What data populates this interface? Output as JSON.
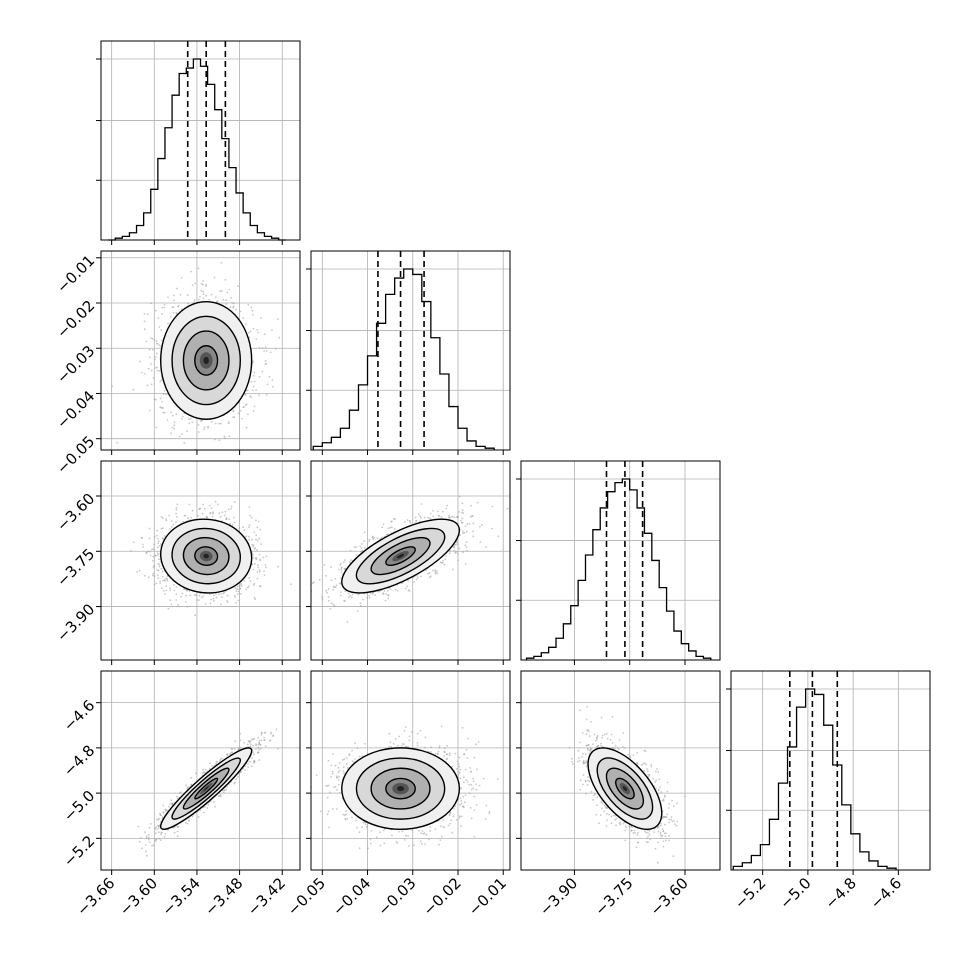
{
  "chart_data": {
    "type": "corner",
    "title": "",
    "params": [
      {
        "range": [
          -3.675,
          -3.395
        ],
        "ticks": [
          -3.66,
          -3.6,
          -3.54,
          -3.48,
          -3.42
        ],
        "tick_labels": [
          "−3.66",
          "−3.60",
          "−3.54",
          "−3.48",
          "−3.42"
        ],
        "quantiles": [
          -3.553,
          -3.527,
          -3.5
        ],
        "median": -3.527,
        "hist_edges": [
          -3.665,
          -3.655,
          -3.645,
          -3.635,
          -3.625,
          -3.615,
          -3.605,
          -3.595,
          -3.585,
          -3.575,
          -3.565,
          -3.555,
          -3.545,
          -3.535,
          -3.525,
          -3.515,
          -3.505,
          -3.495,
          -3.485,
          -3.475,
          -3.465,
          -3.455,
          -3.445,
          -3.435,
          -3.425,
          -3.415
        ],
        "hist": [
          0,
          0.01,
          0.02,
          0.04,
          0.08,
          0.15,
          0.28,
          0.45,
          0.62,
          0.8,
          0.92,
          0.95,
          1.0,
          0.96,
          0.86,
          0.72,
          0.56,
          0.4,
          0.26,
          0.15,
          0.08,
          0.04,
          0.02,
          0.01,
          0
        ]
      },
      {
        "range": [
          -0.0525,
          -0.0085
        ],
        "ticks": [
          -0.05,
          -0.04,
          -0.03,
          -0.02,
          -0.01
        ],
        "tick_labels": [
          "−0.05",
          "−0.04",
          "−0.03",
          "−0.02",
          "−0.01"
        ],
        "quantiles": [
          -0.0377,
          -0.0327,
          -0.0275
        ],
        "median": -0.0327,
        "hist_edges": [
          -0.052,
          -0.05,
          -0.048,
          -0.046,
          -0.044,
          -0.042,
          -0.04,
          -0.038,
          -0.036,
          -0.034,
          -0.032,
          -0.03,
          -0.028,
          -0.026,
          -0.024,
          -0.022,
          -0.02,
          -0.018,
          -0.016,
          -0.014,
          -0.012
        ],
        "hist": [
          0.02,
          0.04,
          0.07,
          0.12,
          0.22,
          0.36,
          0.52,
          0.7,
          0.86,
          0.95,
          1.0,
          0.97,
          0.82,
          0.62,
          0.42,
          0.24,
          0.12,
          0.05,
          0.02,
          0.01
        ]
      },
      {
        "range": [
          -4.045,
          -3.505
        ],
        "ticks": [
          -3.9,
          -3.75,
          -3.6
        ],
        "tick_labels": [
          "−3.90",
          "−3.75",
          "−3.60"
        ],
        "quantiles": [
          -3.813,
          -3.763,
          -3.715
        ],
        "median": -3.763,
        "hist_edges": [
          -4.03,
          -4.01,
          -3.99,
          -3.97,
          -3.95,
          -3.93,
          -3.91,
          -3.89,
          -3.87,
          -3.85,
          -3.83,
          -3.81,
          -3.79,
          -3.77,
          -3.75,
          -3.73,
          -3.71,
          -3.69,
          -3.67,
          -3.65,
          -3.63,
          -3.61,
          -3.59,
          -3.57,
          -3.55,
          -3.53
        ],
        "hist": [
          0.01,
          0.02,
          0.04,
          0.07,
          0.12,
          0.2,
          0.3,
          0.44,
          0.58,
          0.72,
          0.84,
          0.93,
          0.98,
          1.0,
          0.94,
          0.84,
          0.7,
          0.55,
          0.4,
          0.27,
          0.16,
          0.09,
          0.05,
          0.02,
          0.01
        ]
      },
      {
        "range": [
          -5.34,
          -4.46
        ],
        "ticks": [
          -5.2,
          -5.0,
          -4.8,
          -4.6
        ],
        "tick_labels": [
          "−5.2",
          "−5.0",
          "−4.8",
          "−4.6"
        ],
        "quantiles": [
          -5.08,
          -4.98,
          -4.87
        ],
        "median": -4.98,
        "hist_edges": [
          -5.33,
          -5.29,
          -5.25,
          -5.21,
          -5.17,
          -5.13,
          -5.09,
          -5.05,
          -5.01,
          -4.97,
          -4.93,
          -4.89,
          -4.85,
          -4.81,
          -4.77,
          -4.73,
          -4.69,
          -4.65,
          -4.61
        ],
        "hist": [
          0.02,
          0.04,
          0.08,
          0.14,
          0.28,
          0.48,
          0.68,
          0.9,
          1.0,
          0.97,
          0.8,
          0.58,
          0.36,
          0.2,
          0.1,
          0.05,
          0.02,
          0.01
        ]
      }
    ],
    "pairs": [
      {
        "x": 0,
        "y": 1,
        "mean": [
          -3.527,
          -0.0327
        ],
        "sd": [
          0.032,
          0.0065
        ],
        "corr": 0.0,
        "n": 2000
      },
      {
        "x": 0,
        "y": 2,
        "mean": [
          -3.527,
          -3.763
        ],
        "sd": [
          0.032,
          0.05
        ],
        "corr": -0.05,
        "n": 2000
      },
      {
        "x": 0,
        "y": 3,
        "mean": [
          -3.527,
          -4.98
        ],
        "sd": [
          0.032,
          0.09
        ],
        "corr": 0.93,
        "n": 2000
      },
      {
        "x": 1,
        "y": 2,
        "mean": [
          -0.0327,
          -3.763
        ],
        "sd": [
          0.0065,
          0.05
        ],
        "corr": 0.7,
        "n": 2000
      },
      {
        "x": 1,
        "y": 3,
        "mean": [
          -0.0327,
          -4.98
        ],
        "sd": [
          0.0065,
          0.09
        ],
        "corr": 0.0,
        "n": 2000
      },
      {
        "x": 2,
        "y": 3,
        "mean": [
          -3.763,
          -4.98
        ],
        "sd": [
          0.05,
          0.09
        ],
        "corr": -0.6,
        "n": 2000
      }
    ],
    "contour_levels_sigma": [
      0.5,
      1.0,
      1.5,
      2.0
    ],
    "grid": true,
    "colors": {
      "points": "#9a9a9a",
      "density": "#000000",
      "lines": "#000000",
      "grid": "#b0b0b0"
    }
  }
}
